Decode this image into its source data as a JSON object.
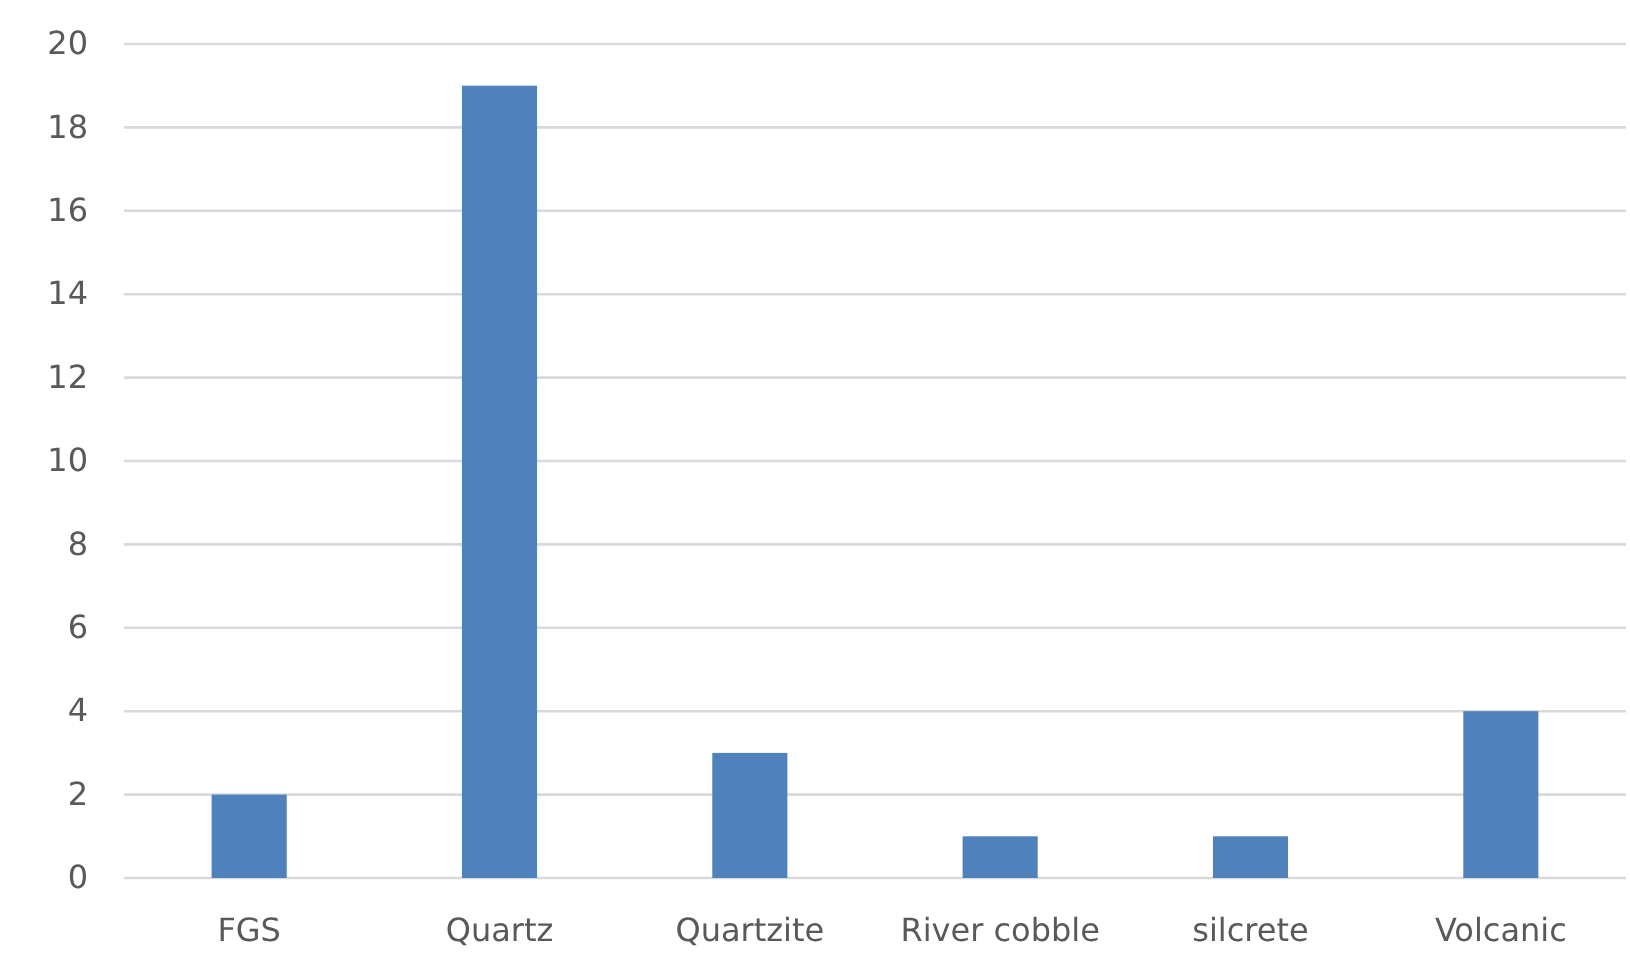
{
  "chart_data": {
    "type": "bar",
    "categories": [
      "FGS",
      "Quartz",
      "Quartzite",
      "River cobble",
      "silcrete",
      "Volcanic"
    ],
    "values": [
      2,
      19,
      3,
      1,
      1,
      4
    ],
    "color": "#4f81bd",
    "ylim": [
      0,
      20
    ],
    "yticks": [
      0,
      2,
      4,
      6,
      8,
      10,
      12,
      14,
      16,
      18,
      20
    ],
    "grid": "y"
  }
}
